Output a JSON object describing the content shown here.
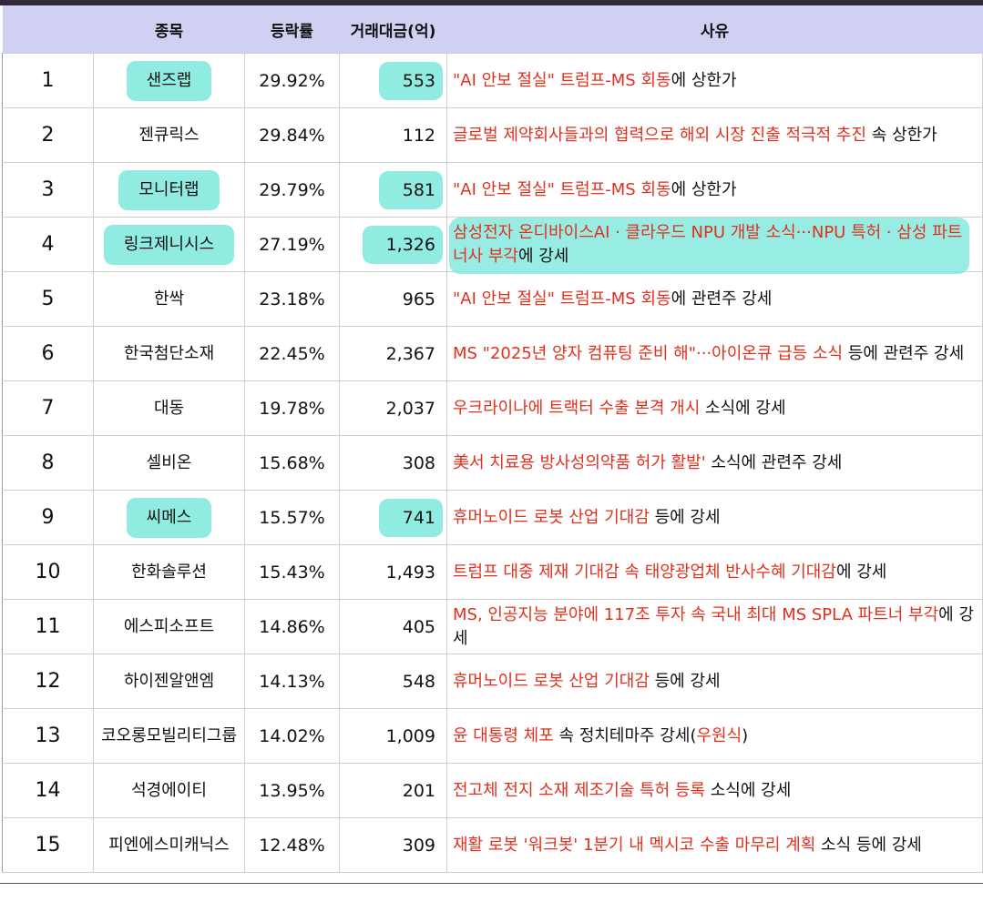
{
  "headers": {
    "rank": "",
    "name": "종목",
    "change": "등락률",
    "volume": "거래대금(억)",
    "reason": "사유"
  },
  "rows": [
    {
      "rank": "1",
      "name": "샌즈랩",
      "change": "29.92%",
      "volume": "553",
      "reason_red": "\"AI 안보 절실\" 트럼프-MS 회동",
      "reason_black": "에 상한가",
      "highlight_name": true,
      "highlight_volume": true
    },
    {
      "rank": "2",
      "name": "젠큐릭스",
      "change": "29.84%",
      "volume": "112",
      "reason_red": "글로벌 제약회사들과의 협력으로 해외 시장 진출 적극적 추진",
      "reason_black": " 속 상한가"
    },
    {
      "rank": "3",
      "name": "모니터랩",
      "change": "29.79%",
      "volume": "581",
      "reason_red": "\"AI 안보 절실\" 트럼프-MS 회동",
      "reason_black": "에 상한가",
      "highlight_name": true,
      "highlight_volume": true
    },
    {
      "rank": "4",
      "name": "링크제니시스",
      "change": "27.19%",
      "volume": "1,326",
      "reason_red": "삼성전자 온디바이스AI · 클라우드 NPU 개발 소식···NPU 특허 · 삼성 파트너사 부각",
      "reason_black": "에 강세",
      "highlight_name": true,
      "highlight_volume": true,
      "highlight_reason": true
    },
    {
      "rank": "5",
      "name": "한싹",
      "change": "23.18%",
      "volume": "965",
      "reason_red": "\"AI 안보 절실\" 트럼프-MS 회동",
      "reason_black": "에 관련주 강세"
    },
    {
      "rank": "6",
      "name": "한국첨단소재",
      "change": "22.45%",
      "volume": "2,367",
      "reason_red": "MS \"2025년 양자 컴퓨팅 준비 해\"···아이온큐 급등 소식",
      "reason_black": " 등에 관련주 강세"
    },
    {
      "rank": "7",
      "name": "대동",
      "change": "19.78%",
      "volume": "2,037",
      "reason_red": "우크라이나에 트랙터 수출 본격 개시",
      "reason_black": " 소식에 강세"
    },
    {
      "rank": "8",
      "name": "셀비온",
      "change": "15.68%",
      "volume": "308",
      "reason_red": "美서 치료용 방사성의약품 허가 활발'",
      "reason_black": " 소식에 관련주 강세"
    },
    {
      "rank": "9",
      "name": "씨메스",
      "change": "15.57%",
      "volume": "741",
      "reason_red": "휴머노이드 로봇 산업 기대감",
      "reason_black": " 등에 강세",
      "highlight_name": true,
      "highlight_volume": true
    },
    {
      "rank": "10",
      "name": "한화솔루션",
      "change": "15.43%",
      "volume": "1,493",
      "reason_red": "트럼프 대중 제재 기대감 속 태양광업체 반사수혜 기대감",
      "reason_black": "에 강세"
    },
    {
      "rank": "11",
      "name": "에스피소프트",
      "change": "14.86%",
      "volume": "405",
      "reason_red": "MS, 인공지능 분야에 117조 투자 속 국내 최대 MS SPLA 파트너 부각",
      "reason_black": "에 강세"
    },
    {
      "rank": "12",
      "name": "하이젠알앤엠",
      "change": "14.13%",
      "volume": "548",
      "reason_red": "휴머노이드 로봇 산업 기대감",
      "reason_black": " 등에 강세"
    },
    {
      "rank": "13",
      "name": "코오롱모빌리티그룹",
      "change": "14.02%",
      "volume": "1,009",
      "reason_red": "윤 대통령 체포",
      "reason_black": " 속 정치테마주 강세(",
      "reason_red2": "우원식",
      "reason_black2": ")"
    },
    {
      "rank": "14",
      "name": "석경에이티",
      "change": "13.95%",
      "volume": "201",
      "reason_red": "전고체 전지 소재 제조기술 특허 등록",
      "reason_black": " 소식에 강세"
    },
    {
      "rank": "15",
      "name": "피엔에스미캐닉스",
      "change": "12.48%",
      "volume": "309",
      "reason_red": "재활 로봇 '워크봇' 1분기 내 멕시코 수출 마무리 계획",
      "reason_black": " 소식 등에 강세"
    }
  ],
  "colors": {
    "header_bg": "#cfd0f2",
    "reason_red": "#e0301e",
    "highlight": "#7de8dc"
  }
}
